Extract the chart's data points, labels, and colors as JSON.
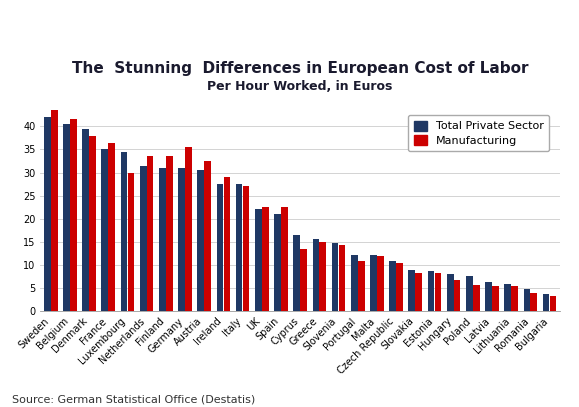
{
  "title": "The  Stunning  Differences in European Cost of Labor",
  "subtitle": "Per Hour Worked, in Euros",
  "source": "Source: German Statistical Office (Destatis)",
  "categories": [
    "Sweden",
    "Belgium",
    "Denmark",
    "France",
    "Luxembourg",
    "Netherlands",
    "Finland",
    "Germany",
    "Austria",
    "Ireland",
    "Italy",
    "UK",
    "Spain",
    "Cyprus",
    "Greece",
    "Slovenia",
    "Portugal",
    "Malta",
    "Czech Republic",
    "Slovakia",
    "Estonia",
    "Hungary",
    "Poland",
    "Latvia",
    "Lithuania",
    "Romania",
    "Bulgaria"
  ],
  "total_private": [
    42,
    40.5,
    39.5,
    35,
    34.5,
    31.5,
    31,
    31,
    30.5,
    27.5,
    27.5,
    22,
    21,
    16.5,
    15.5,
    14.8,
    12.2,
    12.2,
    10.8,
    8.8,
    8.7,
    8.0,
    7.5,
    6.3,
    5.8,
    4.7,
    3.7
  ],
  "manufacturing": [
    43.5,
    41.5,
    38,
    36.5,
    30,
    33.5,
    33.5,
    35.5,
    32.5,
    29,
    27,
    22.5,
    22.5,
    13.5,
    15,
    14.2,
    10.8,
    12,
    10.5,
    8.2,
    8.2,
    6.7,
    5.7,
    5.5,
    5.5,
    4.0,
    3.2
  ],
  "color_private": "#1f3864",
  "color_manufacturing": "#cc0000",
  "background_color": "#ffffff",
  "ylim": [
    0,
    45
  ],
  "yticks": [
    0,
    5,
    10,
    15,
    20,
    25,
    30,
    35,
    40
  ],
  "title_fontsize": 11,
  "subtitle_fontsize": 9,
  "source_fontsize": 8,
  "legend_fontsize": 8,
  "tick_fontsize": 7,
  "bar_width": 0.35
}
